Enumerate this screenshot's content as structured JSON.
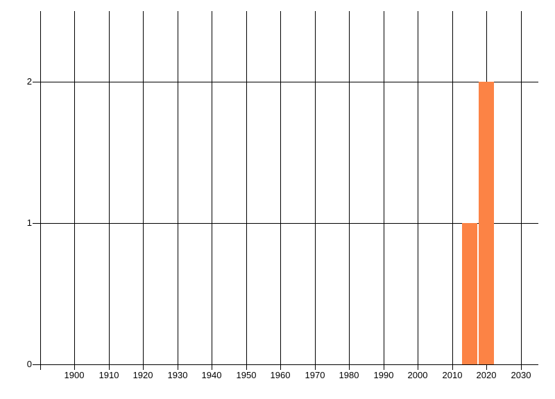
{
  "chart_data": {
    "type": "bar",
    "title": "",
    "xlabel": "",
    "ylabel": "",
    "x": [
      2015,
      2020
    ],
    "values": [
      1,
      2
    ],
    "x_ticks": [
      1900,
      1910,
      1920,
      1930,
      1940,
      1950,
      1960,
      1970,
      1980,
      1990,
      2000,
      2010,
      2020,
      2030
    ],
    "x_tick_labels": [
      "1900",
      "1910",
      "1920",
      "1930",
      "1940",
      "1950",
      "1960",
      "1970",
      "1980",
      "1990",
      "2000",
      "2010",
      "2020",
      "2030"
    ],
    "y_ticks": [
      0,
      1,
      2
    ],
    "y_tick_labels": [
      "0",
      "1",
      "2"
    ],
    "xlim": [
      1890,
      2035
    ],
    "ylim": [
      0,
      2.5
    ],
    "grid": "both",
    "legend": "none",
    "bar_color": "#fc8345",
    "grid_color": "#000000",
    "text_color": "#000000",
    "background_color": "#ffffff"
  }
}
